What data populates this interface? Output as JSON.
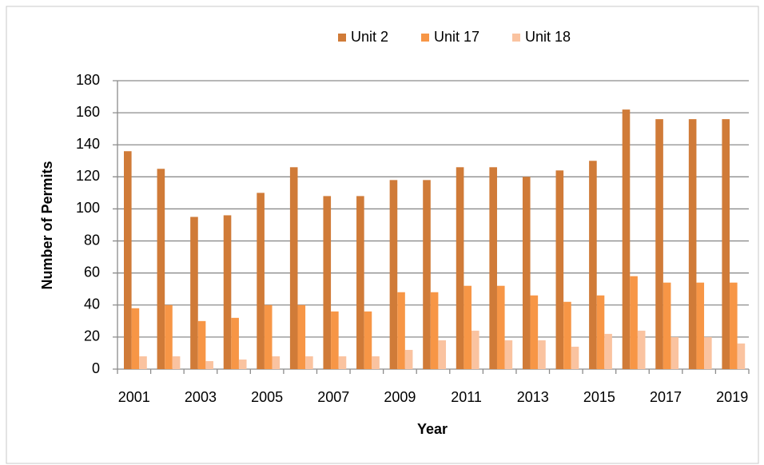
{
  "chart_data": {
    "type": "bar",
    "xlabel": "Year",
    "ylabel": "Number of Permits",
    "categories": [
      "2001",
      null,
      "2003",
      null,
      "2005",
      null,
      "2007",
      null,
      "2009",
      null,
      "2011",
      null,
      "2013",
      null,
      "2015",
      null,
      "2017",
      null,
      "2019"
    ],
    "series": [
      {
        "name": "Unit 2",
        "color": "#d07b38",
        "values": [
          136,
          125,
          95,
          96,
          110,
          126,
          108,
          108,
          118,
          118,
          126,
          126,
          120,
          124,
          130,
          162,
          156,
          156,
          156
        ]
      },
      {
        "name": "Unit 17",
        "color": "#f79646",
        "values": [
          38,
          40,
          30,
          32,
          40,
          40,
          36,
          36,
          48,
          48,
          52,
          52,
          46,
          42,
          46,
          58,
          54,
          54,
          54
        ]
      },
      {
        "name": "Unit 18",
        "color": "#fac3a0",
        "values": [
          8,
          8,
          5,
          6,
          8,
          8,
          8,
          8,
          12,
          18,
          24,
          18,
          18,
          14,
          22,
          24,
          20,
          20,
          16
        ]
      }
    ],
    "ylim": [
      0,
      180
    ],
    "yticks": [
      0,
      20,
      40,
      60,
      80,
      100,
      120,
      140,
      160,
      180
    ],
    "grid": true,
    "legend": "top"
  }
}
